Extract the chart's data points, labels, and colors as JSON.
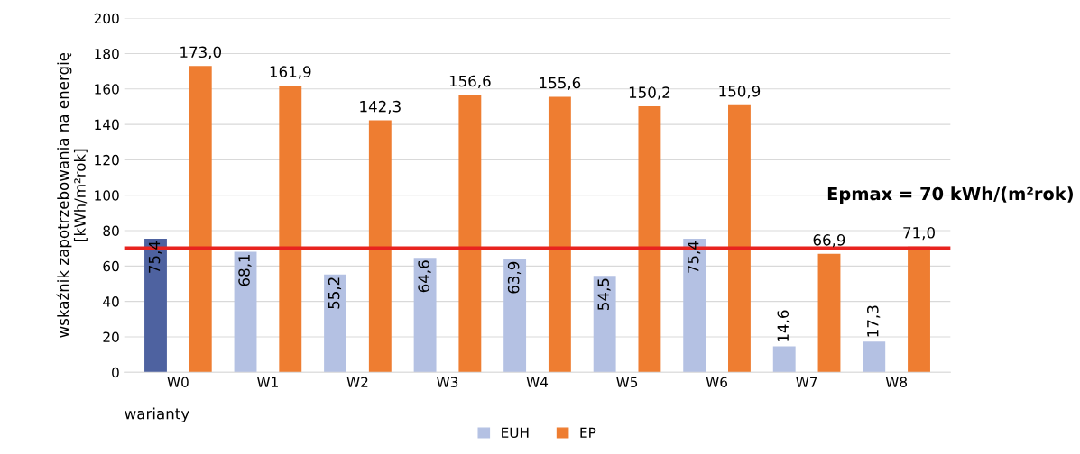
{
  "chart_data": {
    "type": "bar",
    "xlabel": "warianty",
    "ylabel": "wskaźnik zapotrzebowania na energię\n[kWh/m²rok]",
    "categories": [
      "W0",
      "W1",
      "W2",
      "W3",
      "W4",
      "W5",
      "W6",
      "W7",
      "W8"
    ],
    "series": [
      {
        "name": "EUH",
        "color": "#b4c1e3",
        "colors": [
          "#4e62a0",
          "#b4c1e3",
          "#b4c1e3",
          "#b4c1e3",
          "#b4c1e3",
          "#b4c1e3",
          "#b4c1e3",
          "#b4c1e3",
          "#b4c1e3"
        ],
        "values": [
          75.4,
          68.1,
          55.2,
          64.6,
          63.9,
          54.5,
          75.4,
          14.6,
          17.3
        ],
        "value_labels": [
          "75,4",
          "68,1",
          "55,2",
          "64,6",
          "63,9",
          "54,5",
          "75,4",
          "14,6",
          "17,3"
        ]
      },
      {
        "name": "EP",
        "color": "#ee7d31",
        "values": [
          173.0,
          161.9,
          142.3,
          156.6,
          155.6,
          150.2,
          150.9,
          66.9,
          71.0
        ],
        "value_labels": [
          "173,0",
          "161,9",
          "142,3",
          "156,6",
          "155,6",
          "150,2",
          "150,9",
          "66,9",
          "71,0"
        ]
      }
    ],
    "ylim": [
      0,
      200
    ],
    "yticks": [
      0,
      20,
      40,
      60,
      80,
      100,
      120,
      140,
      160,
      180,
      200
    ],
    "ref_lines": [
      {
        "axis": "y",
        "value": 70,
        "label": "Epmax = 70 kWh/(m²rok)",
        "color": "#e8231f"
      }
    ],
    "grid": "y",
    "legend": "bottom"
  }
}
